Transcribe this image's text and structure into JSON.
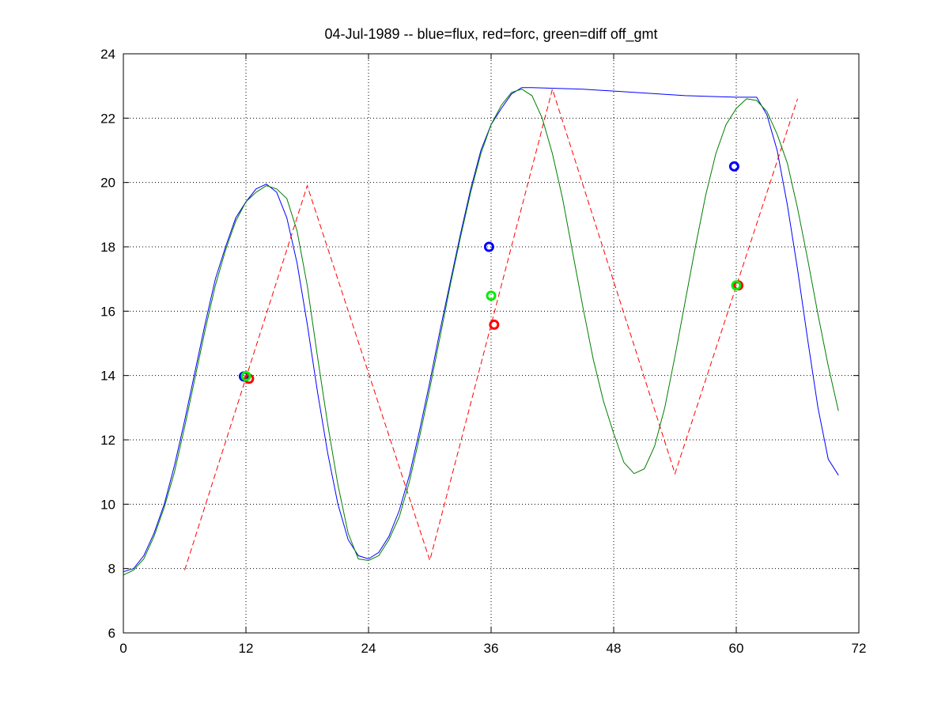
{
  "chart_data": {
    "type": "line",
    "title": "04-Jul-1989 -- blue=flux, red=forc, green=diff off_gmt",
    "xlabel": "",
    "ylabel": "",
    "xlim": [
      0,
      72
    ],
    "ylim": [
      6,
      24
    ],
    "xticks": [
      0,
      12,
      24,
      36,
      48,
      60,
      72
    ],
    "yticks": [
      6,
      8,
      10,
      12,
      14,
      16,
      18,
      20,
      22,
      24
    ],
    "grid": true,
    "series": [
      {
        "color": "#0000ff",
        "style": "solid",
        "points": [
          [
            0,
            7.9
          ],
          [
            1,
            8.0
          ],
          [
            2,
            8.4
          ],
          [
            3,
            9.1
          ],
          [
            4,
            10.0
          ],
          [
            5,
            11.2
          ],
          [
            6,
            12.6
          ],
          [
            7,
            14.1
          ],
          [
            8,
            15.6
          ],
          [
            9,
            17.0
          ],
          [
            10,
            18.0
          ],
          [
            11,
            18.9
          ],
          [
            12,
            19.4
          ],
          [
            13,
            19.8
          ],
          [
            14,
            19.95
          ],
          [
            15,
            19.7
          ],
          [
            16,
            18.9
          ],
          [
            17,
            17.5
          ],
          [
            18,
            15.6
          ],
          [
            19,
            13.5
          ],
          [
            20,
            11.6
          ],
          [
            21,
            10.0
          ],
          [
            22,
            8.9
          ],
          [
            23,
            8.4
          ],
          [
            24,
            8.3
          ],
          [
            25,
            8.5
          ],
          [
            26,
            9.0
          ],
          [
            27,
            9.8
          ],
          [
            28,
            10.9
          ],
          [
            29,
            12.3
          ],
          [
            30,
            13.8
          ],
          [
            31,
            15.4
          ],
          [
            32,
            16.9
          ],
          [
            33,
            18.4
          ],
          [
            34,
            19.8
          ],
          [
            35,
            21.0
          ],
          [
            36,
            21.8
          ],
          [
            37,
            22.3
          ],
          [
            38,
            22.75
          ],
          [
            39,
            22.95
          ],
          [
            40,
            22.95
          ],
          [
            45,
            22.9
          ],
          [
            50,
            22.8
          ],
          [
            55,
            22.7
          ],
          [
            60,
            22.65
          ],
          [
            62,
            22.65
          ],
          [
            63,
            22.1
          ],
          [
            64,
            21.0
          ],
          [
            65,
            19.3
          ],
          [
            66,
            17.3
          ],
          [
            67,
            15.1
          ],
          [
            68,
            13.0
          ],
          [
            69,
            11.4
          ],
          [
            70,
            10.9
          ]
        ]
      },
      {
        "color": "#ff0000",
        "style": "dashed",
        "points": [
          [
            6,
            7.95
          ],
          [
            18,
            19.9
          ],
          [
            30,
            8.25
          ],
          [
            42,
            22.9
          ],
          [
            54,
            10.95
          ],
          [
            66,
            22.6
          ]
        ]
      },
      {
        "color": "#007f00",
        "style": "solid",
        "points": [
          [
            0,
            7.8
          ],
          [
            1,
            7.95
          ],
          [
            2,
            8.3
          ],
          [
            3,
            9.0
          ],
          [
            4,
            9.9
          ],
          [
            5,
            11.0
          ],
          [
            6,
            12.4
          ],
          [
            7,
            13.9
          ],
          [
            8,
            15.4
          ],
          [
            9,
            16.8
          ],
          [
            10,
            17.9
          ],
          [
            11,
            18.8
          ],
          [
            12,
            19.4
          ],
          [
            13,
            19.7
          ],
          [
            14,
            19.9
          ],
          [
            15,
            19.8
          ],
          [
            16,
            19.5
          ],
          [
            17,
            18.5
          ],
          [
            18,
            16.8
          ],
          [
            19,
            14.6
          ],
          [
            20,
            12.5
          ],
          [
            21,
            10.6
          ],
          [
            22,
            9.1
          ],
          [
            23,
            8.3
          ],
          [
            24,
            8.25
          ],
          [
            25,
            8.4
          ],
          [
            26,
            8.9
          ],
          [
            27,
            9.6
          ],
          [
            28,
            10.7
          ],
          [
            29,
            12.1
          ],
          [
            30,
            13.6
          ],
          [
            31,
            15.2
          ],
          [
            32,
            16.8
          ],
          [
            33,
            18.3
          ],
          [
            34,
            19.7
          ],
          [
            35,
            20.9
          ],
          [
            36,
            21.8
          ],
          [
            37,
            22.4
          ],
          [
            38,
            22.8
          ],
          [
            39,
            22.9
          ],
          [
            40,
            22.7
          ],
          [
            41,
            22.0
          ],
          [
            42,
            20.9
          ],
          [
            43,
            19.5
          ],
          [
            44,
            17.8
          ],
          [
            45,
            16.1
          ],
          [
            46,
            14.5
          ],
          [
            47,
            13.2
          ],
          [
            48,
            12.2
          ],
          [
            49,
            11.3
          ],
          [
            50,
            10.95
          ],
          [
            51,
            11.1
          ],
          [
            52,
            11.8
          ],
          [
            53,
            13.0
          ],
          [
            54,
            14.6
          ],
          [
            55,
            16.3
          ],
          [
            56,
            18.0
          ],
          [
            57,
            19.6
          ],
          [
            58,
            20.9
          ],
          [
            59,
            21.8
          ],
          [
            60,
            22.3
          ],
          [
            61,
            22.6
          ],
          [
            62,
            22.55
          ],
          [
            63,
            22.2
          ],
          [
            64,
            21.5
          ],
          [
            65,
            20.6
          ],
          [
            66,
            19.2
          ],
          [
            67,
            17.6
          ],
          [
            68,
            15.9
          ],
          [
            69,
            14.3
          ],
          [
            70,
            12.9
          ]
        ]
      }
    ],
    "markers": [
      {
        "x": 11.8,
        "y": 13.97,
        "color": "#0000ff"
      },
      {
        "x": 12.3,
        "y": 13.9,
        "color": "#ff0000"
      },
      {
        "x": 12.0,
        "y": 13.98,
        "color": "#00ee00"
      },
      {
        "x": 35.8,
        "y": 18.0,
        "color": "#0000ff"
      },
      {
        "x": 36.3,
        "y": 15.58,
        "color": "#ff0000"
      },
      {
        "x": 36.0,
        "y": 16.48,
        "color": "#00ee00"
      },
      {
        "x": 59.8,
        "y": 20.5,
        "color": "#0000ff"
      },
      {
        "x": 60.2,
        "y": 16.8,
        "color": "#ff0000"
      },
      {
        "x": 60.0,
        "y": 16.8,
        "color": "#00ee00"
      }
    ]
  }
}
